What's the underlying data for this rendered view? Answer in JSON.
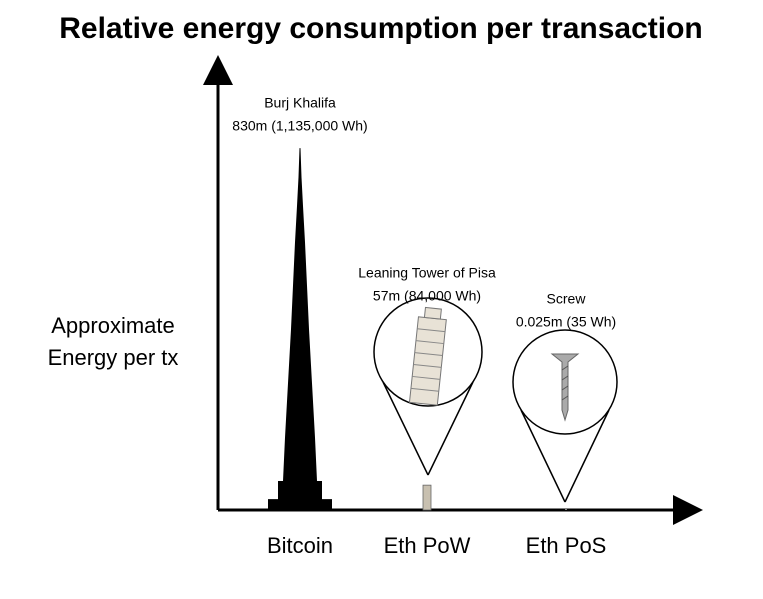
{
  "chart_data": {
    "type": "bar",
    "title": "Relative energy consumption per transaction",
    "y_label": "Approximate Energy per tx",
    "categories": [
      "Bitcoin",
      "Eth PoW",
      "Eth PoS"
    ],
    "object_names": [
      "Burj Khalifa",
      "Leaning Tower of Pisa",
      "Screw"
    ],
    "values": [
      830,
      57,
      0.025
    ],
    "value_labels": [
      "830m (1,135,000 Wh)",
      "57m (84,000 Wh)",
      "0.025m (35 Wh)"
    ],
    "ylim": [
      0,
      1000
    ],
    "color": "#000000"
  }
}
